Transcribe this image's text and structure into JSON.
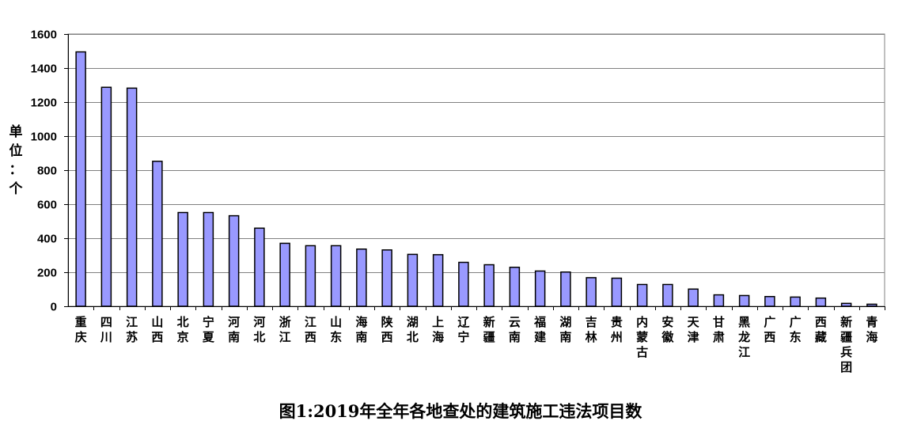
{
  "chart_data": {
    "type": "bar",
    "title": "图1:2019年全年各地查处的建筑施工违法项目数",
    "ylabel": "单位：个",
    "xlabel": "",
    "ylim": [
      0,
      1600
    ],
    "yticks": [
      0,
      200,
      400,
      600,
      800,
      1000,
      1200,
      1400,
      1600
    ],
    "grid": true,
    "legend": "none",
    "bar_color": "#9999ff",
    "bar_edge_color": "#000000",
    "categories": [
      "重庆",
      "四川",
      "江苏",
      "山西",
      "北京",
      "宁夏",
      "河南",
      "河北",
      "浙江",
      "江西",
      "山东",
      "海南",
      "陕西",
      "湖北",
      "上海",
      "辽宁",
      "新疆",
      "云南",
      "福建",
      "湖南",
      "吉林",
      "贵州",
      "内蒙古",
      "安徽",
      "天津",
      "甘肃",
      "黑龙江",
      "广西",
      "广东",
      "西藏",
      "新疆兵团",
      "青海"
    ],
    "values": [
      1495,
      1287,
      1282,
      852,
      551,
      551,
      532,
      459,
      370,
      356,
      356,
      336,
      331,
      305,
      303,
      258,
      244,
      229,
      207,
      201,
      168,
      165,
      128,
      128,
      101,
      67,
      63,
      57,
      54,
      48,
      17,
      12
    ]
  }
}
